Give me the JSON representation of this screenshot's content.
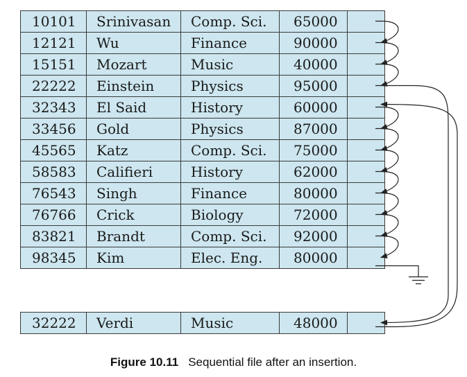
{
  "records": [
    [
      "10101",
      "Srinivasan",
      "Comp. Sci.",
      "65000"
    ],
    [
      "12121",
      "Wu",
      "Finance",
      "90000"
    ],
    [
      "15151",
      "Mozart",
      "Music",
      "40000"
    ],
    [
      "22222",
      "Einstein",
      "Physics",
      "95000"
    ],
    [
      "32343",
      "El Said",
      "History",
      "60000"
    ],
    [
      "33456",
      "Gold",
      "Physics",
      "87000"
    ],
    [
      "45565",
      "Katz",
      "Comp. Sci.",
      "75000"
    ],
    [
      "58583",
      "Califieri",
      "History",
      "62000"
    ],
    [
      "76543",
      "Singh",
      "Finance",
      "80000"
    ],
    [
      "76766",
      "Crick",
      "Biology",
      "72000"
    ],
    [
      "83821",
      "Brandt",
      "Comp. Sci.",
      "92000"
    ],
    [
      "98345",
      "Kim",
      "Elec. Eng.",
      "80000"
    ]
  ],
  "overflow_records": [
    [
      "32222",
      "Verdi",
      "Music",
      "48000"
    ]
  ],
  "caption": {
    "label": "Figure 10.11",
    "text": "Sequential file after an insertion."
  },
  "colors": {
    "cell_fill": "#cde6ef",
    "border": "#3a3a3a",
    "arrow": "#222222"
  }
}
